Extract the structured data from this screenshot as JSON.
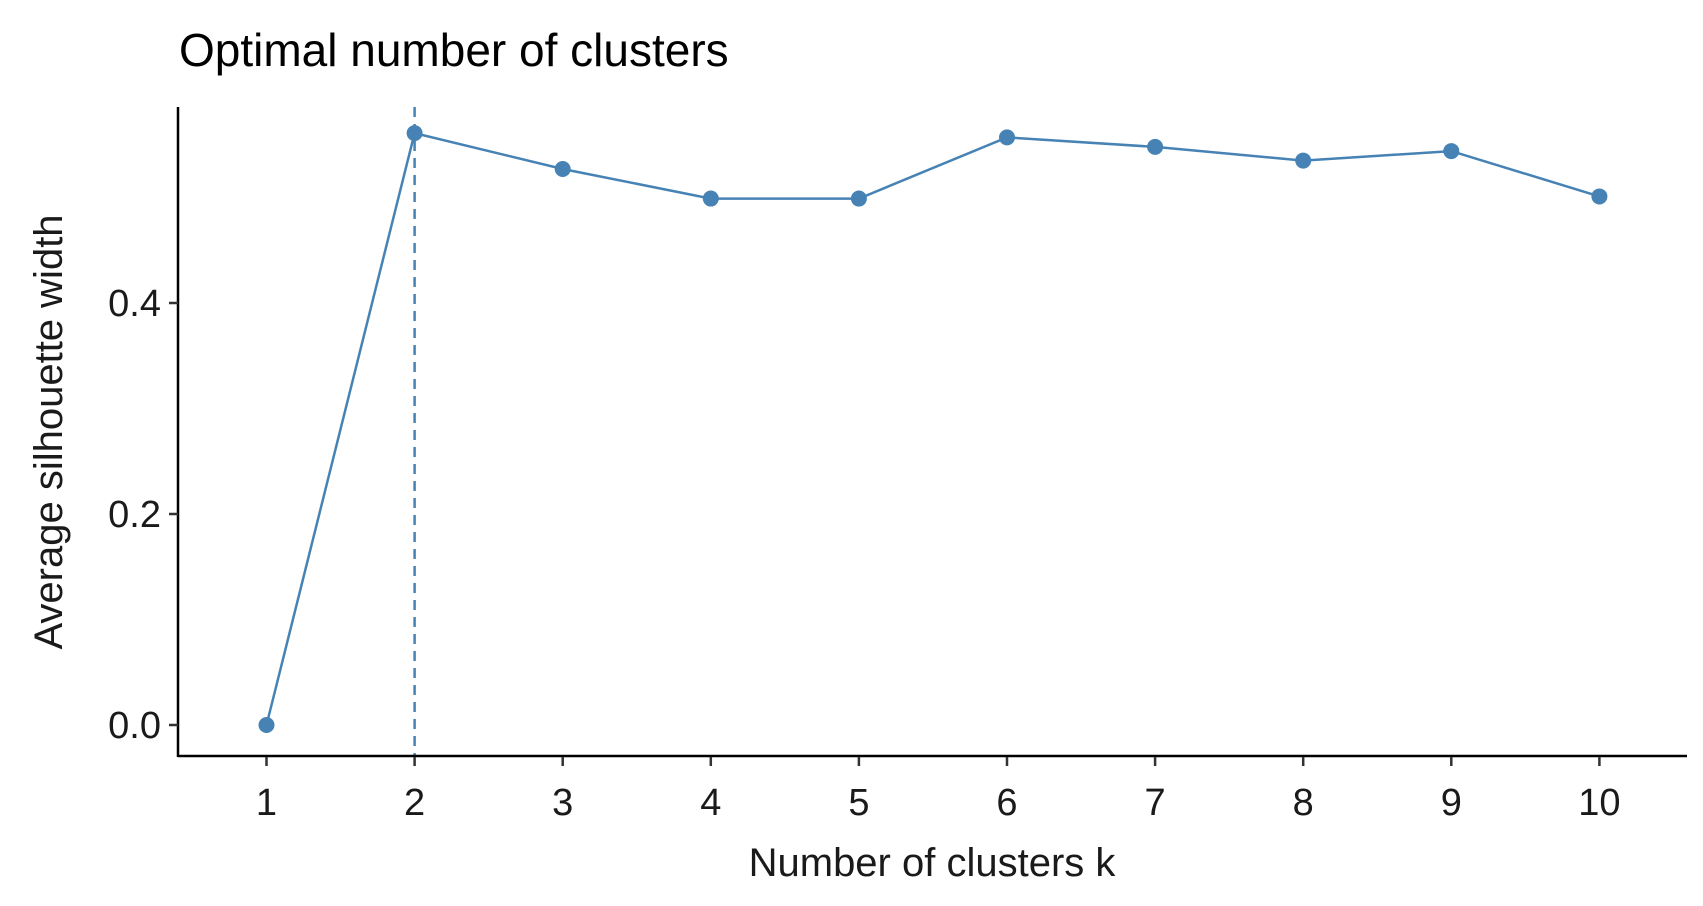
{
  "chart_data": {
    "type": "line",
    "title": "Optimal number of clusters",
    "xlabel": "Number of clusters k",
    "ylabel": "Average silhouette width",
    "categories": [
      "1",
      "2",
      "3",
      "4",
      "5",
      "6",
      "7",
      "8",
      "9",
      "10"
    ],
    "values": [
      0.0,
      0.561,
      0.527,
      0.499,
      0.499,
      0.557,
      0.548,
      0.535,
      0.544,
      0.501
    ],
    "yticks": [
      "0.0",
      "0.2",
      "0.4"
    ],
    "ytick_values": [
      0.0,
      0.2,
      0.4
    ],
    "ylim": [
      -0.028,
      0.59
    ],
    "optimal_k": 2,
    "grid": false,
    "legend": "none",
    "colors": {
      "series": "#4682B4",
      "axis": "#000000"
    }
  }
}
